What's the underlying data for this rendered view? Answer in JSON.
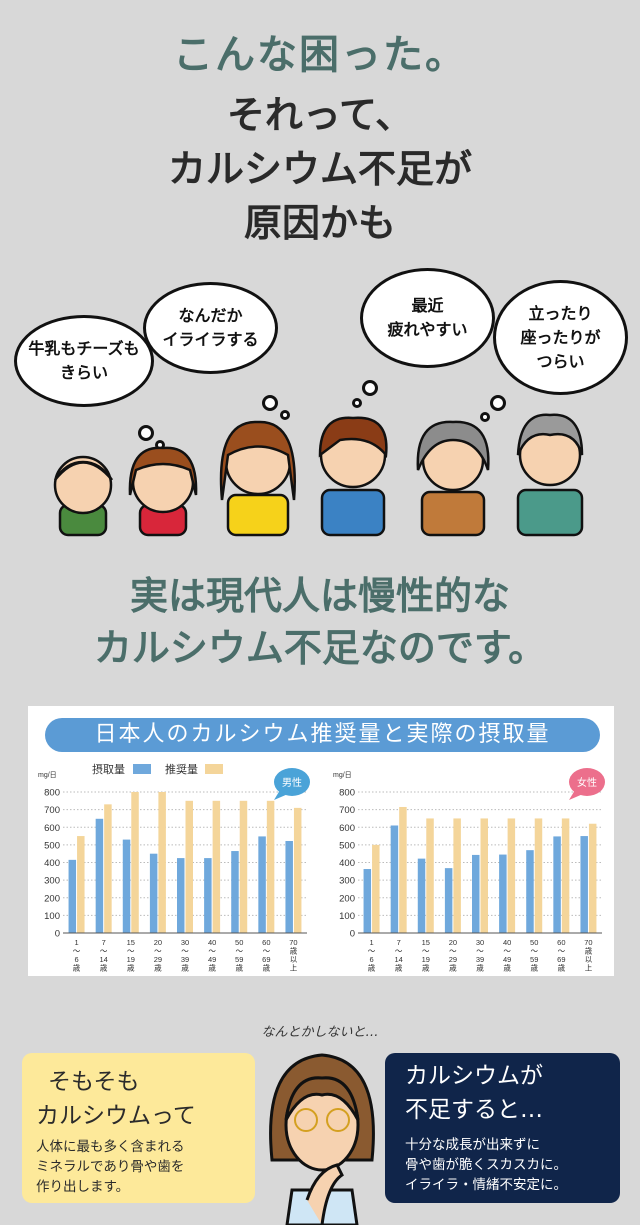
{
  "header": {
    "title": "こんな困った。",
    "subtitle_lines": [
      "それって、",
      "カルシウム不足が",
      "原因かも"
    ]
  },
  "bubbles": [
    {
      "lines": [
        "牛乳もチーズも",
        "きらい"
      ]
    },
    {
      "lines": [
        "なんだか",
        "イライラする"
      ]
    },
    {
      "lines": [
        "最近",
        "疲れやすい"
      ]
    },
    {
      "lines": [
        "立ったり",
        "座ったりが",
        "つらい"
      ]
    }
  ],
  "section": {
    "lines": [
      "実は現代人は慢性的な",
      "カルシウム不足なのです。"
    ]
  },
  "chart_title": "日本人のカルシウム推奨量と実際の摂取量",
  "colors": {
    "intake": "#6fa8dc",
    "recommended": "#f4d59a",
    "male_badge": "#4aa3d8",
    "female_badge": "#ec6f8c"
  },
  "chart_data": [
    {
      "type": "bar",
      "badge": "男性",
      "unit": "mg/日",
      "ylim": [
        0,
        800
      ],
      "yticks": [
        0,
        100,
        200,
        300,
        400,
        500,
        600,
        700,
        800
      ],
      "grid": true,
      "legend": [
        "摂取量",
        "推奨量"
      ],
      "categories": [
        [
          "1",
          "〜",
          "6",
          "歳"
        ],
        [
          "7",
          "〜",
          "14",
          "歳"
        ],
        [
          "15",
          "〜",
          "19",
          "歳"
        ],
        [
          "20",
          "〜",
          "29",
          "歳"
        ],
        [
          "30",
          "〜",
          "39",
          "歳"
        ],
        [
          "40",
          "〜",
          "49",
          "歳"
        ],
        [
          "50",
          "〜",
          "59",
          "歳"
        ],
        [
          "60",
          "〜",
          "69",
          "歳"
        ],
        [
          "70",
          "歳",
          "以",
          "上"
        ]
      ],
      "series": [
        {
          "name": "摂取量",
          "values": [
            415,
            648,
            530,
            450,
            425,
            425,
            465,
            548,
            522
          ]
        },
        {
          "name": "推奨量",
          "values": [
            550,
            730,
            800,
            800,
            750,
            750,
            750,
            750,
            710
          ]
        }
      ]
    },
    {
      "type": "bar",
      "badge": "女性",
      "unit": "mg/日",
      "ylim": [
        0,
        800
      ],
      "yticks": [
        0,
        100,
        200,
        300,
        400,
        500,
        600,
        700,
        800
      ],
      "grid": true,
      "categories": [
        [
          "1",
          "〜",
          "6",
          "歳"
        ],
        [
          "7",
          "〜",
          "14",
          "歳"
        ],
        [
          "15",
          "〜",
          "19",
          "歳"
        ],
        [
          "20",
          "〜",
          "29",
          "歳"
        ],
        [
          "30",
          "〜",
          "39",
          "歳"
        ],
        [
          "40",
          "〜",
          "49",
          "歳"
        ],
        [
          "50",
          "〜",
          "59",
          "歳"
        ],
        [
          "60",
          "〜",
          "69",
          "歳"
        ],
        [
          "70",
          "歳",
          "以",
          "上"
        ]
      ],
      "series": [
        {
          "name": "摂取量",
          "values": [
            363,
            610,
            422,
            368,
            443,
            445,
            470,
            548,
            550
          ]
        },
        {
          "name": "推奨量",
          "values": [
            500,
            715,
            650,
            650,
            650,
            650,
            650,
            650,
            620
          ]
        }
      ]
    }
  ],
  "bottom": {
    "thought": "なんとかしないと…",
    "left": {
      "title_lines": [
        "そもそも",
        "カルシウムって"
      ],
      "body_lines": [
        "人体に最も多く含まれる",
        "ミネラルであり骨や歯を",
        "作り出します。"
      ]
    },
    "right": {
      "title_lines": [
        "カルシウムが",
        "不足すると…"
      ],
      "body_lines": [
        "十分な成長が出来ずに",
        "骨や歯が脆くスカスカに。",
        "イライラ・情緒不安定に。"
      ]
    }
  }
}
